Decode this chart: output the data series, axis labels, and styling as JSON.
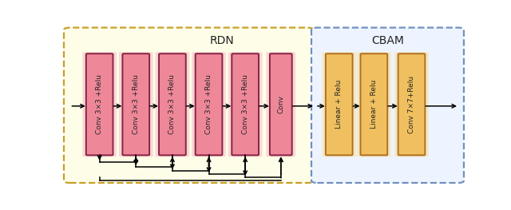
{
  "rdn_bg": "#FDFDE8",
  "cbam_bg": "#EEF4FF",
  "rdn_border": "#C8A028",
  "cbam_border": "#7090C0",
  "pink_fill": "#EE8899",
  "pink_border": "#882244",
  "pink_glow": "#F5C0C8",
  "orange_fill": "#F0C060",
  "orange_border": "#B07020",
  "orange_glow": "#F8DFA0",
  "rdn_label": "RDN",
  "cbam_label": "CBAM",
  "rdn_boxes_labels": [
    "Conv 3×3 +Relu",
    "Conv 3×3 +Relu",
    "Conv 3×3 +Relu",
    "Conv 3×3 +Relu",
    "Conv 3×3 +Relu",
    "Conv"
  ],
  "cbam_boxes_labels": [
    "Linear + Relu",
    "Linear + Relu",
    "Conv 7×7+Relu"
  ],
  "text_color": "#222222",
  "fontsize": 6.5
}
